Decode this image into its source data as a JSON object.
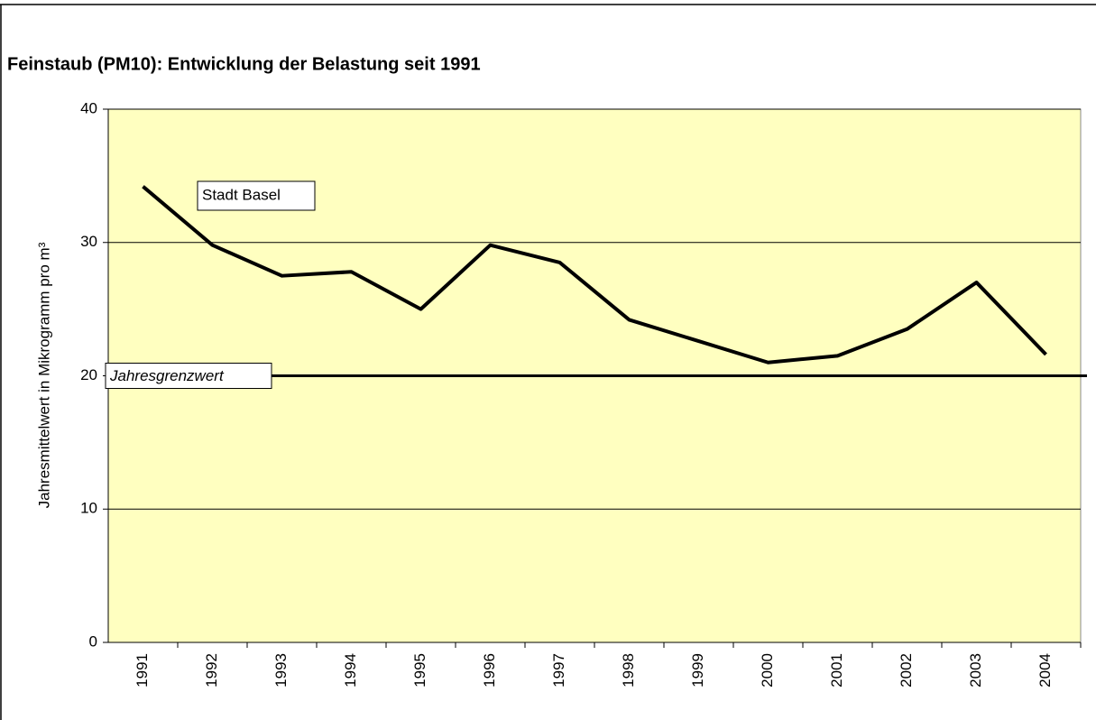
{
  "chart_data": {
    "type": "line",
    "title": "Feinstaub (PM10): Entwicklung der Belastung seit 1991",
    "y_label": "Jahresmittelwert in Mikrogramm pro m³",
    "categories": [
      "1991",
      "1992",
      "1993",
      "1994",
      "1995",
      "1996",
      "1997",
      "1998",
      "1999",
      "2000",
      "2001",
      "2002",
      "2003",
      "2004"
    ],
    "series": [
      {
        "name": "Stadt Basel",
        "color": "#000000",
        "values": [
          34.2,
          29.8,
          27.5,
          27.8,
          25.0,
          29.8,
          28.5,
          24.2,
          22.6,
          21.0,
          21.5,
          23.5,
          27.0,
          21.6
        ]
      }
    ],
    "reference_line": {
      "label": "Jahresgrenzwert",
      "value": 20,
      "color": "#000000"
    },
    "ylim": [
      0,
      40
    ],
    "yticks": [
      0,
      10,
      20,
      30,
      40
    ],
    "grid": true,
    "plot_background": "#ffffc0"
  }
}
